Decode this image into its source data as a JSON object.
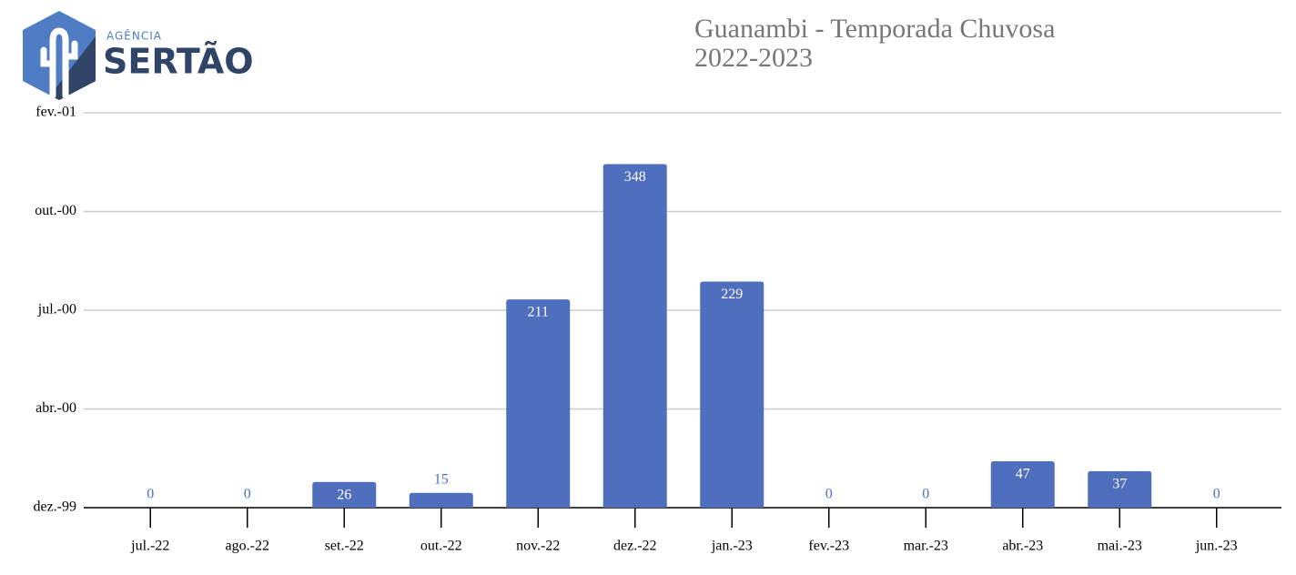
{
  "logo": {
    "small": "AGÊNCIA",
    "large": "SERTÃO"
  },
  "chart_data": {
    "type": "bar",
    "title": "Guanambi - Temporada Chuvosa",
    "subtitle": "2022-2023",
    "categories": [
      "jul.-22",
      "ago.-22",
      "set.-22",
      "out.-22",
      "nov.-22",
      "dez.-22",
      "jan.-23",
      "fev.-23",
      "mar.-23",
      "abr.-23",
      "mai.-23",
      "jun.-23"
    ],
    "values": [
      0,
      0,
      26,
      15,
      211,
      348,
      229,
      0,
      0,
      47,
      37,
      0
    ],
    "color": "#4f6fbe",
    "ylim": [
      0,
      400
    ],
    "yticks": [
      {
        "value": 0,
        "label": "dez.-99"
      },
      {
        "value": 100,
        "label": "abr.-00"
      },
      {
        "value": 200,
        "label": "jul.-00"
      },
      {
        "value": 300,
        "label": "out.-00"
      },
      {
        "value": 400,
        "label": "fev.-01"
      }
    ],
    "grid": true
  }
}
